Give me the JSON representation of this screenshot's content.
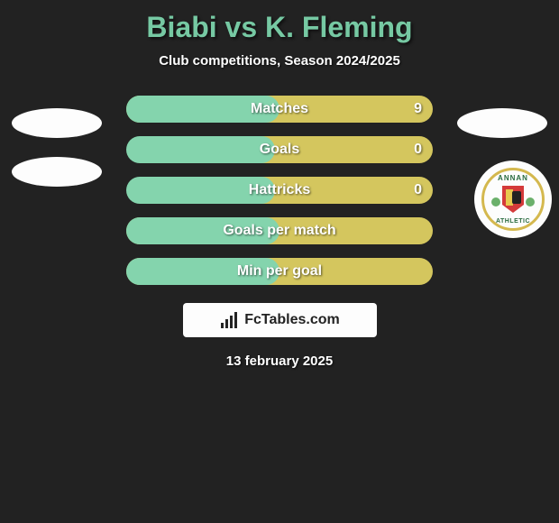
{
  "title": {
    "player1": "Biabi",
    "vs": "vs",
    "player2": "K. Fleming",
    "color": "#76c9a3"
  },
  "subtitle": "Club competitions, Season 2024/2025",
  "rows": [
    {
      "label": "Matches",
      "left_w": 170,
      "right_w": 340,
      "value_right": "9"
    },
    {
      "label": "Goals",
      "left_w": 165,
      "right_w": 330,
      "value_right": "0"
    },
    {
      "label": "Hattricks",
      "left_w": 165,
      "right_w": 330,
      "value_right": "0"
    },
    {
      "label": "Goals per match",
      "left_w": 170,
      "right_w": 340,
      "value_right": ""
    },
    {
      "label": "Min per goal",
      "left_w": 170,
      "right_w": 340,
      "value_right": ""
    }
  ],
  "bar_colors": {
    "left": "#84d4ad",
    "right": "#d4c65e"
  },
  "badge": {
    "top_text": "ANNAN",
    "bottom_text": "ATHLETIC"
  },
  "brand": "FcTables.com",
  "date": "13 february 2025",
  "background_color": "#222222"
}
